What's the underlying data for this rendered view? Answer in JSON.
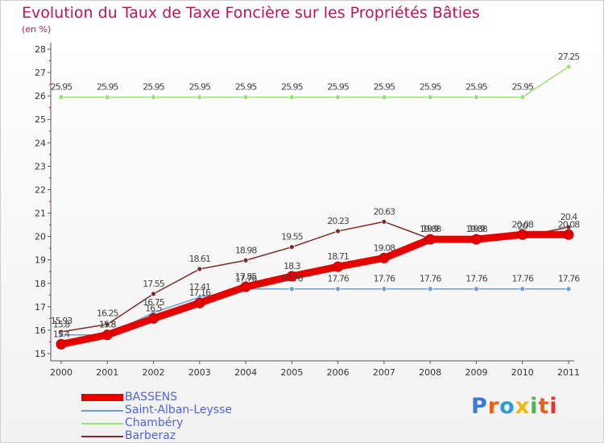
{
  "header": {
    "title": "Evolution du Taux de Taxe Foncière sur les Propriétés Bâties",
    "unit": "(en %)"
  },
  "brand": {
    "text": "Proxiti",
    "colors": [
      "#3a7bd5",
      "#e8611a",
      "#2c9bd6",
      "#f2b705",
      "#4bb44a",
      "#e8611a",
      "#e2362b"
    ]
  },
  "chart_data": {
    "type": "line",
    "title": "Evolution du Taux de Taxe Foncière sur les Propriétés Bâties",
    "ylabel": "(en %)",
    "x": [
      "2000",
      "2001",
      "2002",
      "2003",
      "2004",
      "2005",
      "2006",
      "2007",
      "2008",
      "2009",
      "2010",
      "2011"
    ],
    "ylim": [
      15,
      28
    ],
    "yticks": [
      "15",
      "16",
      "17",
      "18",
      "19",
      "20",
      "21",
      "22",
      "23",
      "24",
      "25",
      "26",
      "27",
      "28"
    ],
    "grid": false,
    "legend": "bottom-left",
    "series": [
      {
        "name": "BASSENS",
        "color": "#e60000",
        "values": [
          15.4,
          15.8,
          16.5,
          17.16,
          17.85,
          18.3,
          18.71,
          19.08,
          19.88,
          19.88,
          20.08,
          20.08
        ],
        "labels": [
          "15.4",
          "15.8",
          "16.5",
          "17.16",
          "17.85",
          "18.3",
          "18.71",
          "19.08",
          "19.88",
          "19.88",
          "20.08",
          "20.08"
        ]
      },
      {
        "name": "Saint-Alban-Leysse",
        "color": "#6a9fd0",
        "values": [
          15.8,
          15.8,
          16.75,
          17.41,
          17.76,
          17.76,
          17.76,
          17.76,
          17.76,
          17.76,
          17.76,
          17.76
        ],
        "labels": [
          "15.8",
          "15.8",
          "16.75",
          "17.41",
          "17.76",
          "17.76",
          "17.76",
          "17.76",
          "17.76",
          "17.76",
          "17.76",
          "17.76"
        ]
      },
      {
        "name": "Chambéry",
        "color": "#99e07a",
        "values": [
          25.95,
          25.95,
          25.95,
          25.95,
          25.95,
          25.95,
          25.95,
          25.95,
          25.95,
          25.95,
          25.95,
          27.25
        ],
        "labels": [
          "25.95",
          "25.95",
          "25.95",
          "25.95",
          "25.95",
          "25.95",
          "25.95",
          "25.95",
          "25.95",
          "25.95",
          "25.95",
          "27.25"
        ]
      },
      {
        "name": "Barberaz",
        "color": "#7a2a2a",
        "values": [
          15.93,
          16.25,
          17.55,
          18.61,
          18.98,
          19.55,
          20.23,
          20.63,
          19.9,
          19.9,
          20.0,
          20.4
        ],
        "labels": [
          "15.93",
          "16.25",
          "17.55",
          "18.61",
          "18.98",
          "19.55",
          "20.23",
          "20.63",
          "19.9",
          "19.9",
          "20",
          "20.4"
        ]
      }
    ]
  }
}
